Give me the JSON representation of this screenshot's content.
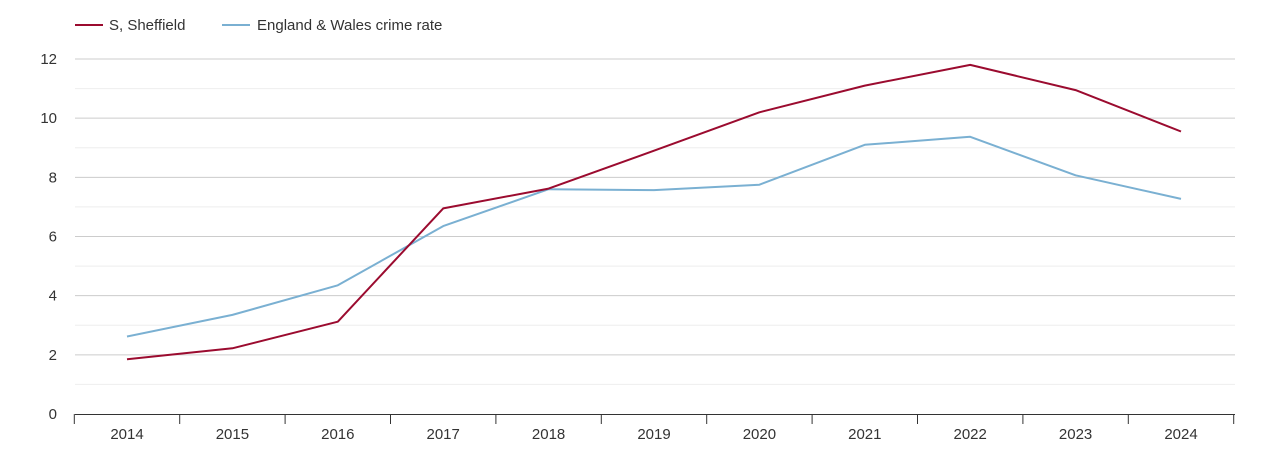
{
  "chart_data": {
    "type": "line",
    "title": "",
    "xlabel": "",
    "ylabel": "",
    "categories": [
      "2014",
      "2015",
      "2016",
      "2017",
      "2018",
      "2019",
      "2020",
      "2021",
      "2022",
      "2023",
      "2024"
    ],
    "ylim": [
      0,
      12
    ],
    "yticks": [
      "0",
      "2",
      "4",
      "6",
      "8",
      "10",
      "12"
    ],
    "grid": true,
    "legend_position": "top-left",
    "series": [
      {
        "name": "S, Sheffield",
        "color": "#9b0b2f",
        "values": [
          1.85,
          2.22,
          3.12,
          6.95,
          7.62,
          8.9,
          10.2,
          11.1,
          11.8,
          10.95,
          9.55
        ]
      },
      {
        "name": "England & Wales crime rate",
        "color": "#7ab0d2",
        "values": [
          2.62,
          3.35,
          4.35,
          6.35,
          7.6,
          7.57,
          7.75,
          9.1,
          9.37,
          8.07,
          7.27
        ]
      }
    ]
  }
}
